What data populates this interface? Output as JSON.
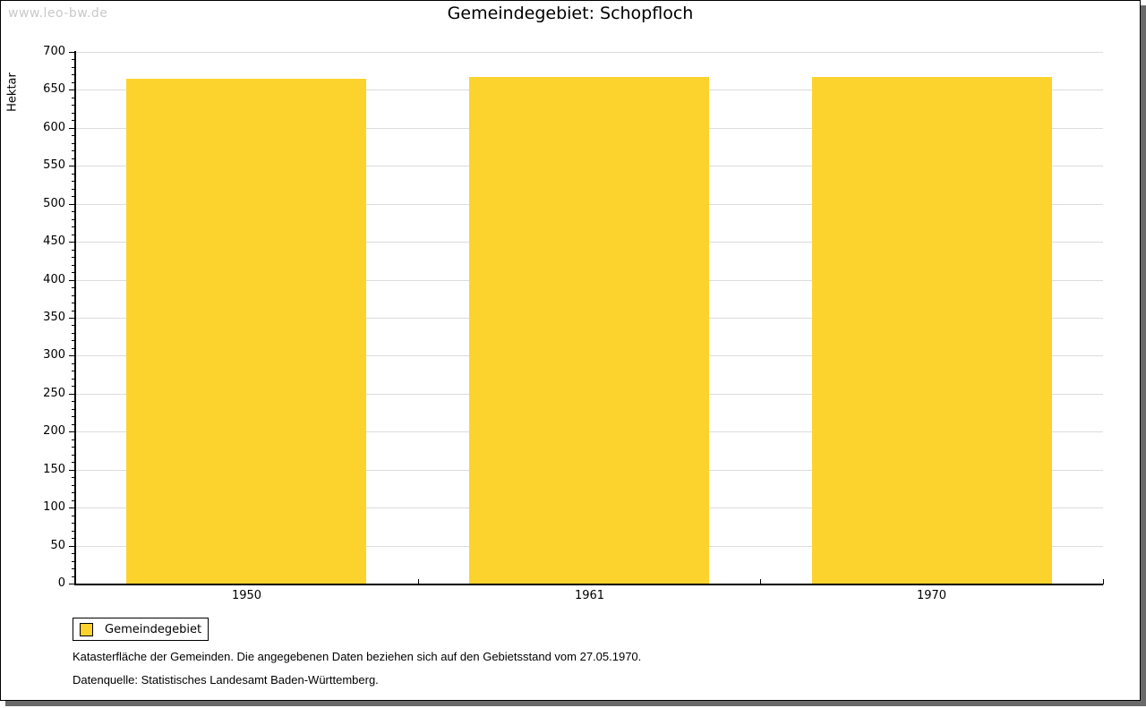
{
  "watermark": "www.leo-bw.de",
  "title": "Gemeindegebiet: Schopfloch",
  "legend": {
    "label": "Gemeindegebiet"
  },
  "footnotes": {
    "line1": "Katasterfläche der Gemeinden. Die angegebenen Daten beziehen sich auf den Gebietsstand vom 27.05.1970.",
    "line2": "Datenquelle: Statistisches Landesamt Baden-Württemberg."
  },
  "colors": {
    "bar": "#fcd32d",
    "grid": "#dcdcdc",
    "axis": "#000000",
    "watermark": "#c9c9c9",
    "shadow": "#696969"
  },
  "chart_data": {
    "type": "bar",
    "title": "Gemeindegebiet: Schopfloch",
    "categories": [
      "1950",
      "1961",
      "1970"
    ],
    "series": [
      {
        "name": "Gemeindegebiet",
        "values": [
          665,
          667,
          667
        ]
      }
    ],
    "xlabel": "",
    "ylabel": "Hektar",
    "ylim": [
      0,
      700
    ],
    "ytick_major": 50,
    "ytick_minor": 10,
    "grid": true,
    "legend_position": "bottom-left",
    "bar_color": "#fcd32d"
  }
}
